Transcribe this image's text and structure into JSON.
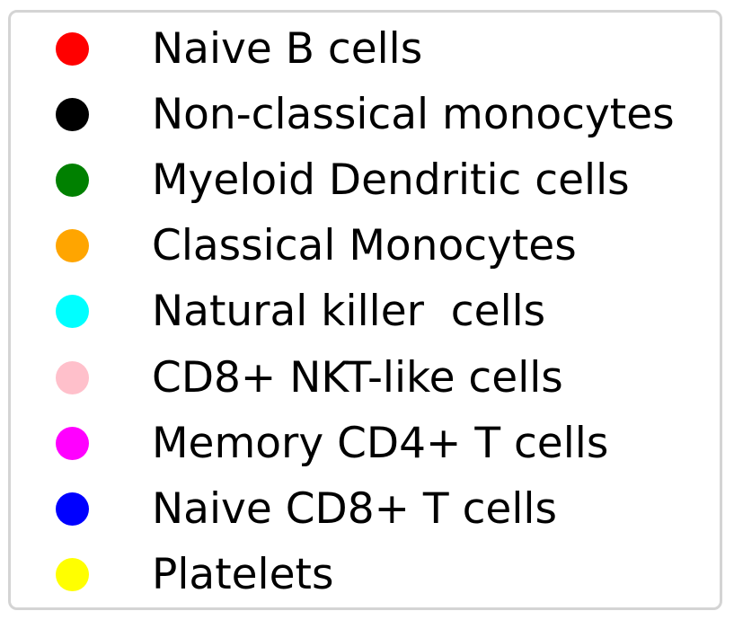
{
  "chart_data": {
    "type": "scatter",
    "legend": {
      "entries": [
        {
          "label": "Naive B cells",
          "color": "#ff0000"
        },
        {
          "label": "Non-classical monocytes",
          "color": "#000000"
        },
        {
          "label": "Myeloid Dendritic cells",
          "color": "#008000"
        },
        {
          "label": "Classical Monocytes",
          "color": "#ffa500"
        },
        {
          "label": "Natural killer  cells",
          "color": "#00ffff"
        },
        {
          "label": "CD8+ NKT-like cells",
          "color": "#ffc0cb"
        },
        {
          "label": "Memory CD4+ T cells",
          "color": "#ff00ff"
        },
        {
          "label": "Naive CD8+ T cells",
          "color": "#0000ff"
        },
        {
          "label": "Platelets",
          "color": "#ffff00"
        }
      ]
    }
  }
}
